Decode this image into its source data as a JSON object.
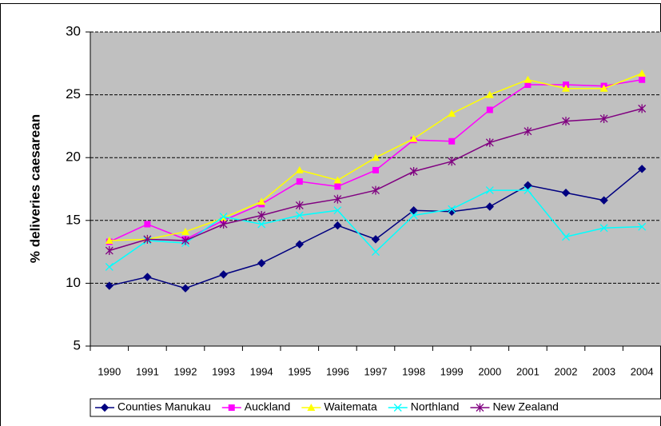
{
  "chart_data": {
    "type": "line",
    "y_label": "% deliveries caesarean",
    "categories": [
      "1990",
      "1991",
      "1992",
      "1993",
      "1994",
      "1995",
      "1996",
      "1997",
      "1998",
      "1999",
      "2000",
      "2001",
      "2002",
      "2003",
      "2004"
    ],
    "series": [
      {
        "name": "Counties Manukau",
        "color": "#000080",
        "marker": "diamond",
        "values": [
          9.8,
          10.5,
          9.6,
          10.7,
          11.6,
          13.1,
          14.6,
          13.5,
          15.8,
          15.7,
          16.1,
          17.8,
          17.2,
          16.6,
          19.1
        ]
      },
      {
        "name": "Auckland",
        "color": "#ff00ff",
        "marker": "square",
        "values": [
          13.3,
          14.7,
          13.5,
          15.0,
          16.3,
          18.1,
          17.7,
          19.0,
          21.4,
          21.3,
          23.8,
          25.8,
          25.8,
          25.7,
          26.2
        ]
      },
      {
        "name": "Waitemata",
        "color": "#ffff00",
        "marker": "triangle",
        "values": [
          13.4,
          13.5,
          14.1,
          15.2,
          16.5,
          19.0,
          18.2,
          20.0,
          21.5,
          23.5,
          25.0,
          26.2,
          25.5,
          25.5,
          26.7
        ]
      },
      {
        "name": "Northland",
        "color": "#00ffff",
        "marker": "x",
        "values": [
          11.3,
          13.4,
          13.2,
          15.3,
          14.7,
          15.4,
          15.8,
          12.5,
          15.4,
          15.9,
          17.4,
          17.4,
          13.7,
          14.4,
          14.5
        ]
      },
      {
        "name": "New Zealand",
        "color": "#800080",
        "marker": "asterisk",
        "values": [
          12.6,
          13.5,
          13.4,
          14.7,
          15.4,
          16.2,
          16.7,
          17.4,
          18.9,
          19.7,
          21.2,
          22.1,
          22.9,
          23.1,
          23.9
        ]
      }
    ],
    "ylim": [
      5,
      30
    ],
    "yticks": [
      5,
      10,
      15,
      20,
      25,
      30
    ],
    "grid": true,
    "plot_background": "#c0c0c0",
    "legend": "bottom"
  }
}
